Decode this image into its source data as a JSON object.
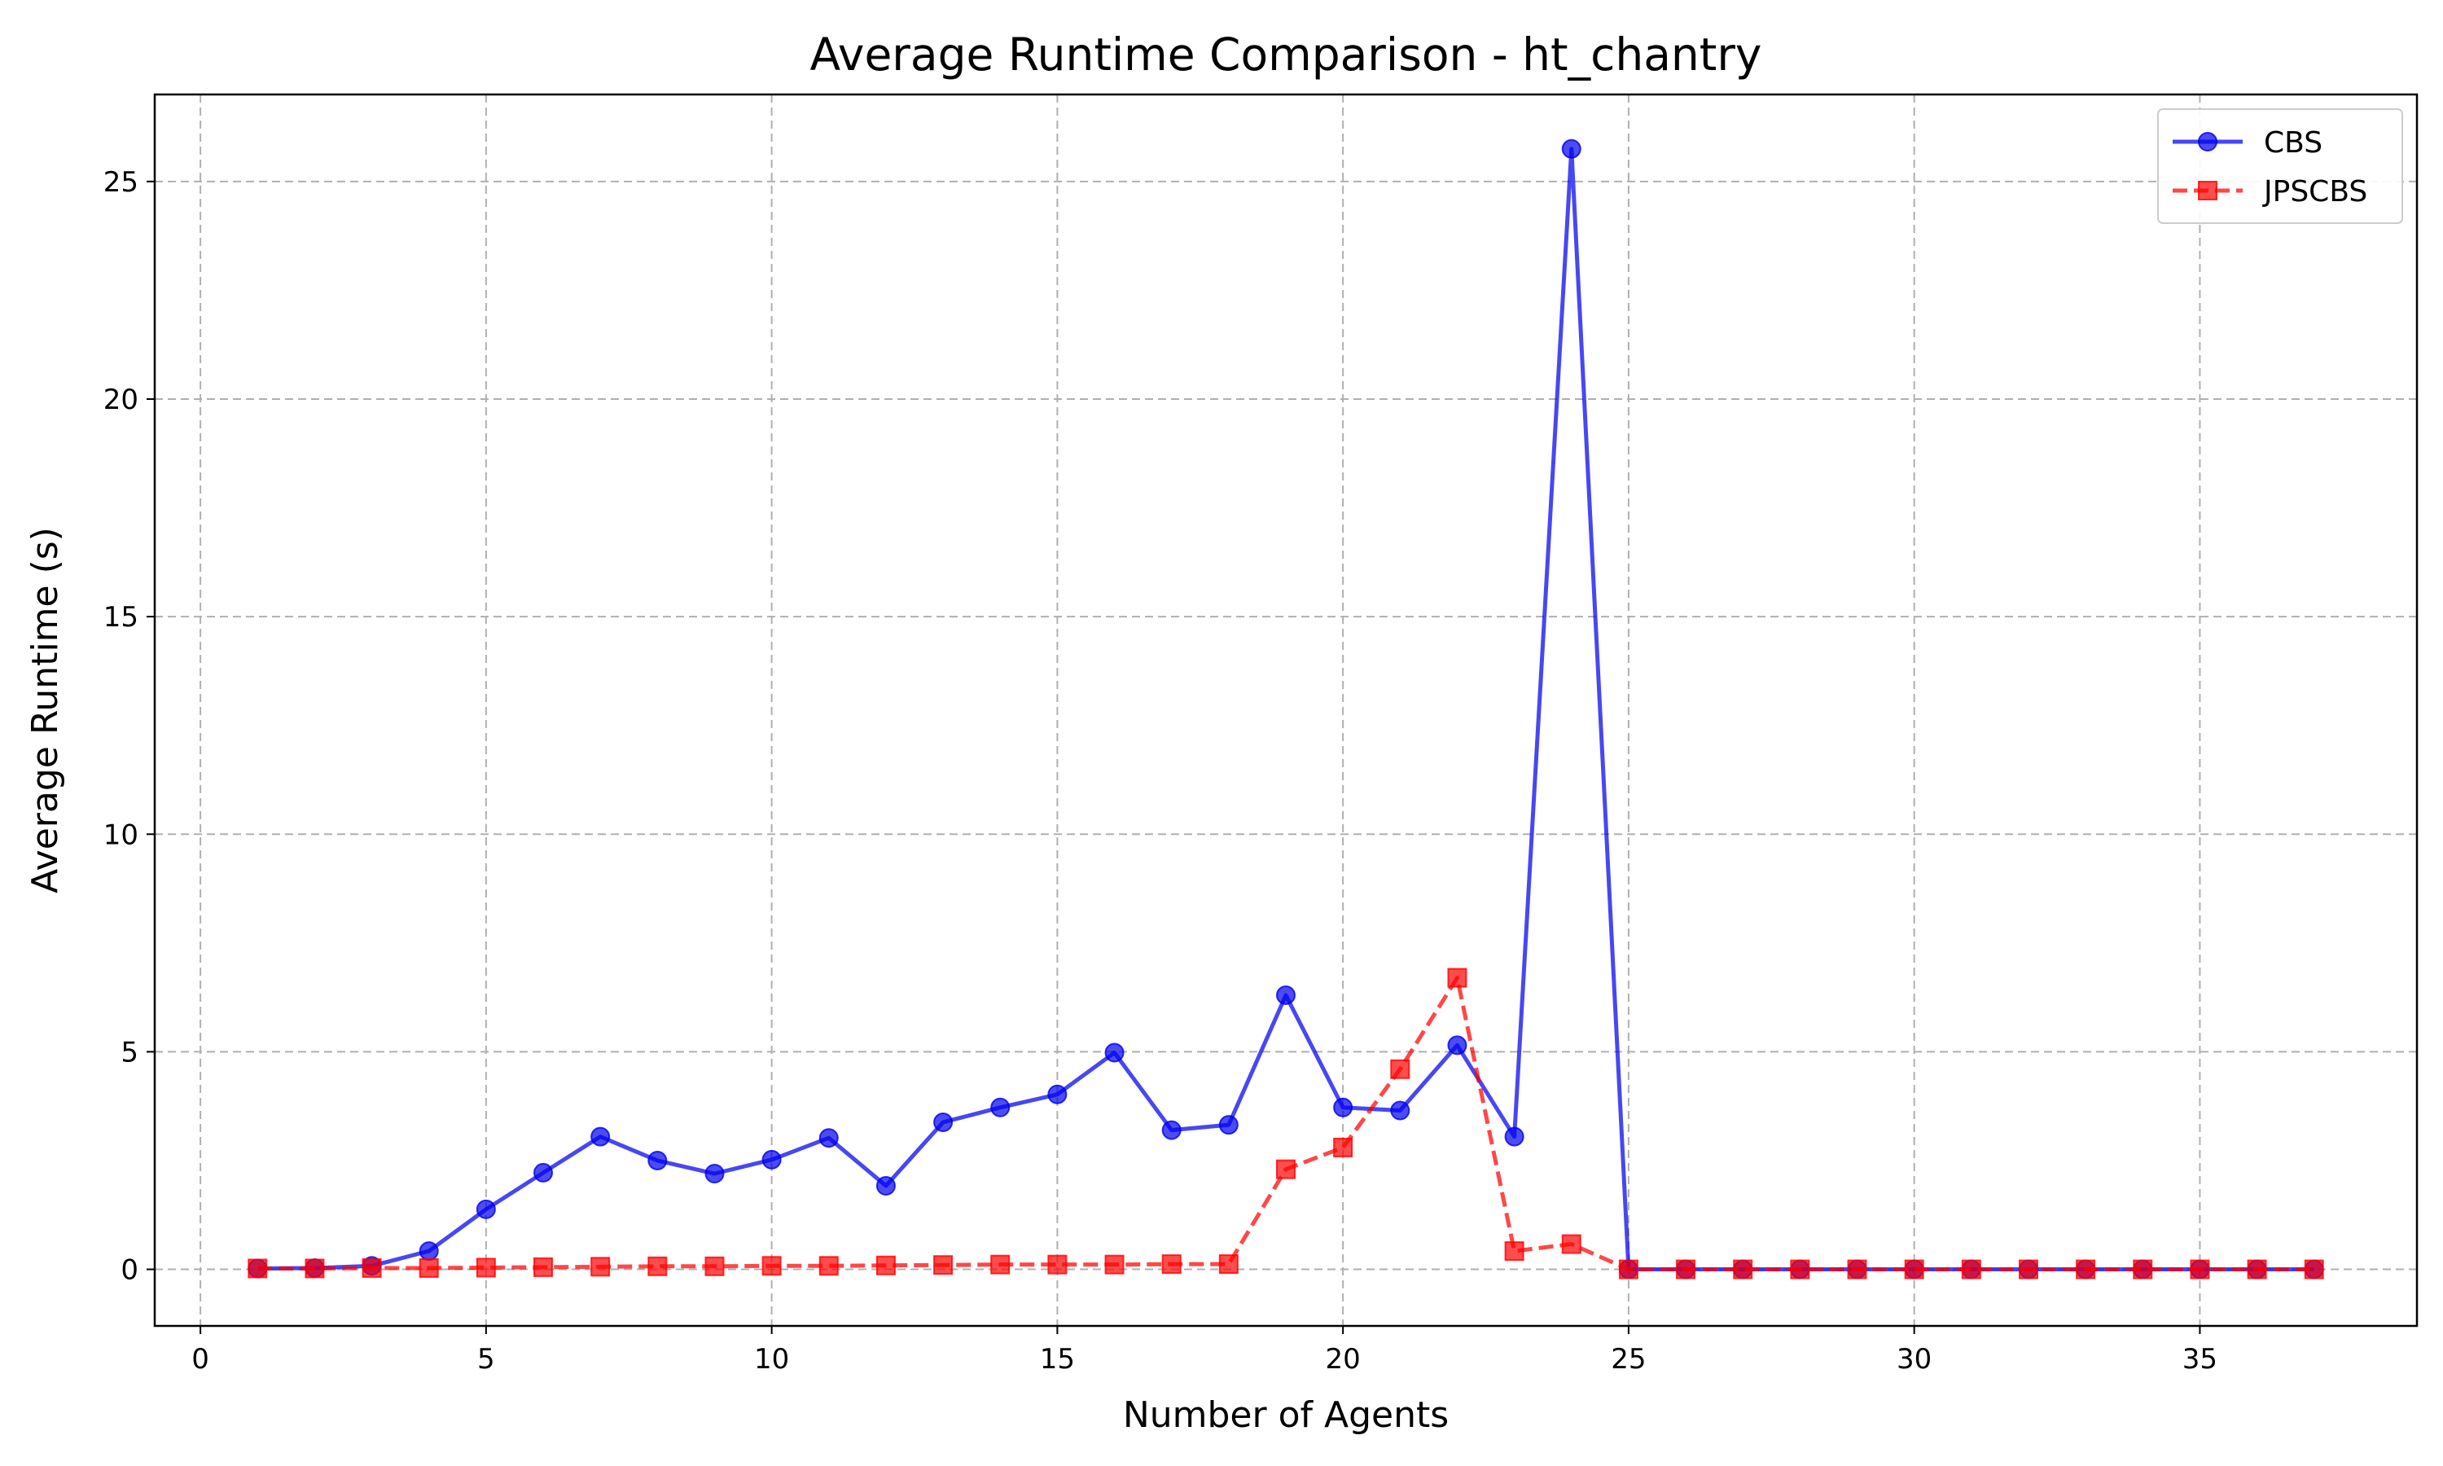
{
  "chart_data": {
    "type": "line",
    "title": "Average Runtime Comparison - ht_chantry",
    "xlabel": "Number of Agents",
    "ylabel": "Average Runtime (s)",
    "xlim": [
      -0.8,
      38.8
    ],
    "ylim": [
      -1.3,
      27.0
    ],
    "xticks": [
      0,
      5,
      10,
      15,
      20,
      25,
      30,
      35
    ],
    "yticks": [
      0,
      5,
      10,
      15,
      20,
      25
    ],
    "grid": true,
    "legend_position": "top-right",
    "x": [
      1,
      2,
      3,
      4,
      5,
      6,
      7,
      8,
      9,
      10,
      11,
      12,
      13,
      14,
      15,
      16,
      17,
      18,
      19,
      20,
      21,
      22,
      23,
      24,
      25,
      26,
      27,
      28,
      29,
      30,
      31,
      32,
      33,
      34,
      35,
      36,
      37
    ],
    "series": [
      {
        "name": "CBS",
        "color": "#0000ee",
        "marker": "circle",
        "linestyle": "solid",
        "values": [
          0.02,
          0.03,
          0.08,
          0.42,
          1.38,
          2.22,
          3.05,
          2.5,
          2.2,
          2.52,
          3.02,
          1.92,
          3.38,
          3.72,
          4.02,
          4.98,
          3.2,
          3.32,
          6.3,
          3.72,
          3.65,
          5.15,
          3.05,
          25.75,
          0,
          0,
          0,
          0,
          0,
          0,
          0,
          0,
          0,
          0,
          0,
          0,
          0
        ]
      },
      {
        "name": "JPSCBS",
        "color": "#ff0000",
        "marker": "square",
        "linestyle": "dashed",
        "values": [
          0.02,
          0.02,
          0.03,
          0.03,
          0.04,
          0.05,
          0.06,
          0.07,
          0.07,
          0.08,
          0.08,
          0.09,
          0.1,
          0.11,
          0.11,
          0.11,
          0.12,
          0.12,
          2.3,
          2.8,
          4.6,
          6.7,
          0.42,
          0.58,
          0,
          0,
          0,
          0,
          0,
          0,
          0,
          0,
          0,
          0,
          0,
          0,
          0
        ]
      }
    ]
  }
}
